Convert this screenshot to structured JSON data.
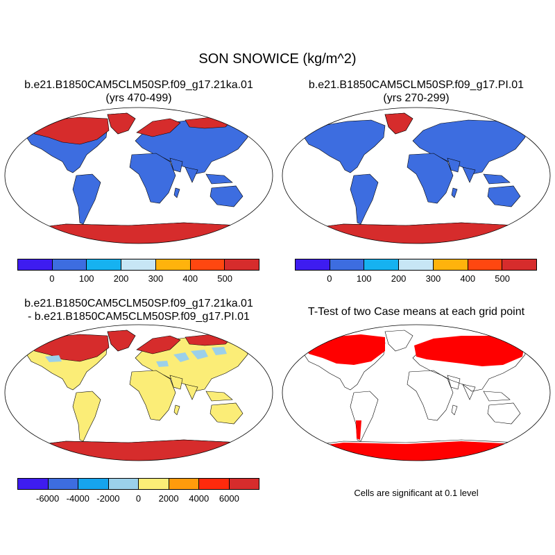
{
  "title": "SON SNOWICE (kg/m^2)",
  "panels": [
    {
      "line1": "b.e21.B1850CAM5CLM50SP.f09_g17.21ka.01",
      "line2": "(yrs 470-499)"
    },
    {
      "line1": "b.e21.B1850CAM5CLM50SP.f09_g17.PI.01",
      "line2": "(yrs 270-299)"
    },
    {
      "line1": "b.e21.B1850CAM5CLM50SP.f09_g17.21ka.01",
      "line2": "- b.e21.B1850CAM5CLM50SP.f09_g17.PI.01"
    },
    {
      "line1": "T-Test of two Case means at each grid point",
      "line2": ""
    }
  ],
  "colorbar_abs": {
    "colors": [
      "#3e1cf0",
      "#3d6de0",
      "#16b2f0",
      "#c7e6f5",
      "#ffb30c",
      "#ff4710",
      "#d62c2c"
    ],
    "labels": [
      "0",
      "100",
      "200",
      "300",
      "400",
      "500"
    ]
  },
  "colorbar_diff": {
    "colors": [
      "#3e1cf0",
      "#3d6de0",
      "#16a4ee",
      "#9bd0ea",
      "#fbed77",
      "#ff9b0c",
      "#ff2a0c",
      "#d62c2c"
    ],
    "labels": [
      "-6000",
      "-4000",
      "-2000",
      "0",
      "2000",
      "4000",
      "6000"
    ]
  },
  "significance_note": "Cells are significant at 0.1 level",
  "fill_colors": {
    "land_low": "#3d6de0",
    "land_high": "#d62c2c",
    "diff_land": "#fbed77",
    "diff_neg": "#9bd0ea",
    "ttest_sig": "#ff0000"
  }
}
